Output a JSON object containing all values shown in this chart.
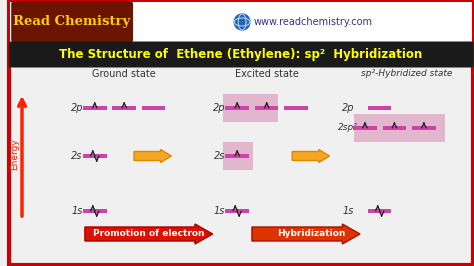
{
  "bg_color": "#f0f0f0",
  "border_color": "#cc0000",
  "title_text": "The Structure of  Ethene (Ethylene): sp²  Hybridization",
  "title_bg": "#1a1a1a",
  "title_color": "#ffff00",
  "logo_text": "Read Chemistry",
  "logo_bg": "#6b1500",
  "logo_color": "#ffcc00",
  "web_text": "www.readchemistry.com",
  "orb_color": "#cc44aa",
  "excited_bg": "#dda0c0",
  "sp2_bg": "#dda0c0",
  "state_labels": [
    "Ground state",
    "Excited state",
    "sp²-Hybridized state"
  ],
  "bottom_label1": "Promotion of electron",
  "bottom_label2": "Hybridization",
  "electron_color": "#222222"
}
